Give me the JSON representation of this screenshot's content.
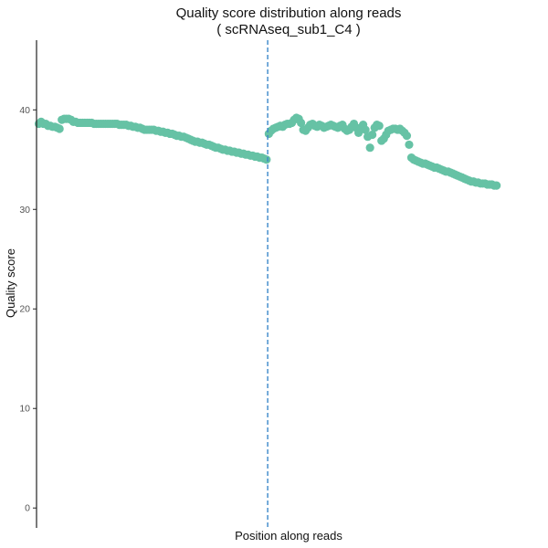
{
  "chart_data": {
    "type": "scatter",
    "title": "Quality score distribution along reads",
    "subtitle": "( scRNAseq_sub1_C4 )",
    "xlabel": "Position along reads",
    "ylabel": "Quality score",
    "ylim": [
      -2,
      47
    ],
    "yticks": [
      0,
      10,
      20,
      30,
      40
    ],
    "xlim": [
      0,
      220
    ],
    "point_color": "#66c2a5",
    "divider_color": "#3a87c9",
    "divider_x": 100.5,
    "grid": false,
    "legend": "none",
    "points": [
      [
        1,
        38.6
      ],
      [
        2,
        38.8
      ],
      [
        3,
        38.6
      ],
      [
        4,
        38.6
      ],
      [
        5,
        38.4
      ],
      [
        6,
        38.4
      ],
      [
        7,
        38.3
      ],
      [
        8,
        38.3
      ],
      [
        9,
        38.2
      ],
      [
        10,
        38.1
      ],
      [
        11,
        39.0
      ],
      [
        12,
        39.1
      ],
      [
        13,
        39.1
      ],
      [
        14,
        39.1
      ],
      [
        15,
        39.0
      ],
      [
        16,
        38.8
      ],
      [
        17,
        38.8
      ],
      [
        18,
        38.7
      ],
      [
        19,
        38.7
      ],
      [
        20,
        38.7
      ],
      [
        21,
        38.7
      ],
      [
        22,
        38.7
      ],
      [
        23,
        38.7
      ],
      [
        24,
        38.7
      ],
      [
        25,
        38.6
      ],
      [
        26,
        38.6
      ],
      [
        27,
        38.6
      ],
      [
        28,
        38.6
      ],
      [
        29,
        38.6
      ],
      [
        30,
        38.6
      ],
      [
        31,
        38.6
      ],
      [
        32,
        38.6
      ],
      [
        33,
        38.6
      ],
      [
        34,
        38.6
      ],
      [
        35,
        38.6
      ],
      [
        36,
        38.5
      ],
      [
        37,
        38.5
      ],
      [
        38,
        38.5
      ],
      [
        39,
        38.5
      ],
      [
        40,
        38.4
      ],
      [
        41,
        38.4
      ],
      [
        42,
        38.3
      ],
      [
        43,
        38.3
      ],
      [
        44,
        38.2
      ],
      [
        45,
        38.2
      ],
      [
        46,
        38.1
      ],
      [
        47,
        38.0
      ],
      [
        48,
        38.0
      ],
      [
        49,
        38.0
      ],
      [
        50,
        38.0
      ],
      [
        51,
        38.0
      ],
      [
        52,
        37.9
      ],
      [
        53,
        37.9
      ],
      [
        54,
        37.8
      ],
      [
        55,
        37.8
      ],
      [
        56,
        37.7
      ],
      [
        57,
        37.7
      ],
      [
        58,
        37.6
      ],
      [
        59,
        37.6
      ],
      [
        60,
        37.5
      ],
      [
        61,
        37.4
      ],
      [
        62,
        37.4
      ],
      [
        63,
        37.3
      ],
      [
        64,
        37.3
      ],
      [
        65,
        37.2
      ],
      [
        66,
        37.1
      ],
      [
        67,
        37.0
      ],
      [
        68,
        36.9
      ],
      [
        69,
        36.8
      ],
      [
        70,
        36.8
      ],
      [
        71,
        36.7
      ],
      [
        72,
        36.7
      ],
      [
        73,
        36.6
      ],
      [
        74,
        36.5
      ],
      [
        75,
        36.5
      ],
      [
        76,
        36.4
      ],
      [
        77,
        36.3
      ],
      [
        78,
        36.2
      ],
      [
        79,
        36.2
      ],
      [
        80,
        36.1
      ],
      [
        81,
        36.0
      ],
      [
        82,
        36.0
      ],
      [
        83,
        35.9
      ],
      [
        84,
        35.9
      ],
      [
        85,
        35.8
      ],
      [
        86,
        35.8
      ],
      [
        87,
        35.7
      ],
      [
        88,
        35.7
      ],
      [
        89,
        35.6
      ],
      [
        90,
        35.6
      ],
      [
        91,
        35.5
      ],
      [
        92,
        35.5
      ],
      [
        93,
        35.4
      ],
      [
        94,
        35.4
      ],
      [
        95,
        35.3
      ],
      [
        96,
        35.3
      ],
      [
        97,
        35.2
      ],
      [
        98,
        35.2
      ],
      [
        99,
        35.1
      ],
      [
        100,
        35.0
      ],
      [
        101,
        37.6
      ],
      [
        102,
        37.9
      ],
      [
        103,
        38.1
      ],
      [
        104,
        38.2
      ],
      [
        105,
        38.3
      ],
      [
        106,
        38.4
      ],
      [
        107,
        38.3
      ],
      [
        108,
        38.5
      ],
      [
        109,
        38.6
      ],
      [
        110,
        38.6
      ],
      [
        111,
        38.7
      ],
      [
        112,
        39.0
      ],
      [
        113,
        39.2
      ],
      [
        114,
        39.1
      ],
      [
        115,
        38.7
      ],
      [
        116,
        38.0
      ],
      [
        117,
        37.9
      ],
      [
        118,
        38.2
      ],
      [
        119,
        38.5
      ],
      [
        120,
        38.6
      ],
      [
        121,
        38.4
      ],
      [
        122,
        38.3
      ],
      [
        123,
        38.5
      ],
      [
        124,
        38.4
      ],
      [
        125,
        38.2
      ],
      [
        126,
        38.3
      ],
      [
        127,
        38.4
      ],
      [
        128,
        38.5
      ],
      [
        129,
        38.4
      ],
      [
        130,
        38.3
      ],
      [
        131,
        38.2
      ],
      [
        132,
        38.4
      ],
      [
        133,
        38.5
      ],
      [
        134,
        38.1
      ],
      [
        135,
        37.9
      ],
      [
        136,
        38.0
      ],
      [
        137,
        38.3
      ],
      [
        138,
        38.6
      ],
      [
        139,
        38.2
      ],
      [
        140,
        37.7
      ],
      [
        141,
        38.2
      ],
      [
        142,
        38.5
      ],
      [
        143,
        38.0
      ],
      [
        144,
        37.3
      ],
      [
        145,
        36.2
      ],
      [
        146,
        37.5
      ],
      [
        147,
        38.2
      ],
      [
        148,
        38.5
      ],
      [
        149,
        38.4
      ],
      [
        150,
        36.9
      ],
      [
        151,
        37.1
      ],
      [
        152,
        37.5
      ],
      [
        153,
        37.9
      ],
      [
        154,
        38.0
      ],
      [
        155,
        38.1
      ],
      [
        156,
        38.1
      ],
      [
        157,
        38.0
      ],
      [
        158,
        38.1
      ],
      [
        159,
        37.9
      ],
      [
        160,
        37.7
      ],
      [
        161,
        37.4
      ],
      [
        162,
        36.5
      ],
      [
        163,
        35.2
      ],
      [
        164,
        35.0
      ],
      [
        165,
        34.9
      ],
      [
        166,
        34.8
      ],
      [
        167,
        34.7
      ],
      [
        168,
        34.6
      ],
      [
        169,
        34.6
      ],
      [
        170,
        34.5
      ],
      [
        171,
        34.4
      ],
      [
        172,
        34.3
      ],
      [
        173,
        34.2
      ],
      [
        174,
        34.2
      ],
      [
        175,
        34.1
      ],
      [
        176,
        34.0
      ],
      [
        177,
        33.9
      ],
      [
        178,
        33.8
      ],
      [
        179,
        33.8
      ],
      [
        180,
        33.7
      ],
      [
        181,
        33.6
      ],
      [
        182,
        33.5
      ],
      [
        183,
        33.4
      ],
      [
        184,
        33.3
      ],
      [
        185,
        33.2
      ],
      [
        186,
        33.1
      ],
      [
        187,
        33.0
      ],
      [
        188,
        32.9
      ],
      [
        189,
        32.8
      ],
      [
        190,
        32.8
      ],
      [
        191,
        32.7
      ],
      [
        192,
        32.7
      ],
      [
        193,
        32.6
      ],
      [
        194,
        32.6
      ],
      [
        195,
        32.6
      ],
      [
        196,
        32.5
      ],
      [
        197,
        32.5
      ],
      [
        198,
        32.5
      ],
      [
        199,
        32.4
      ],
      [
        200,
        32.4
      ]
    ]
  }
}
